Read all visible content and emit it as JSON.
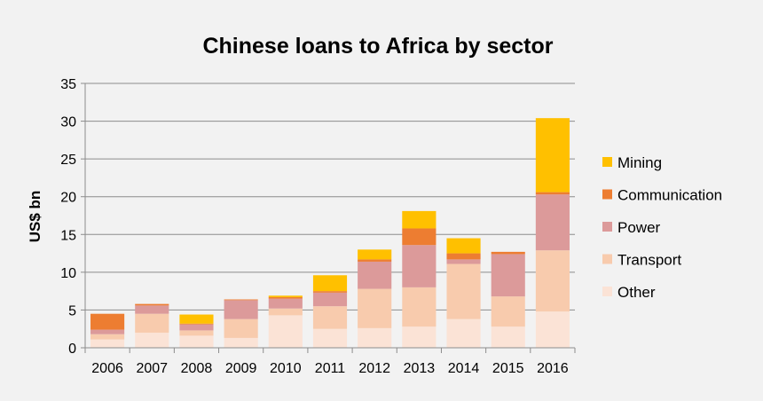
{
  "chart_data": {
    "type": "bar",
    "stacked": true,
    "title": "Chinese loans to Africa by sector",
    "xlabel": "",
    "ylabel": "US$ bn",
    "ylim": [
      0,
      35
    ],
    "yticks": [
      0,
      5,
      10,
      15,
      20,
      25,
      30,
      35
    ],
    "grid": true,
    "legend_position": "right",
    "categories": [
      "2006",
      "2007",
      "2008",
      "2009",
      "2010",
      "2011",
      "2012",
      "2013",
      "2014",
      "2015",
      "2016"
    ],
    "series": [
      {
        "name": "Other",
        "color": "#fbe3d6",
        "values": [
          1.1,
          2.0,
          1.6,
          1.3,
          4.3,
          2.5,
          2.6,
          2.8,
          3.8,
          2.8,
          4.8
        ]
      },
      {
        "name": "Transport",
        "color": "#f8cbad",
        "values": [
          0.7,
          2.5,
          0.7,
          2.5,
          0.9,
          3.0,
          5.2,
          5.2,
          7.3,
          4.0,
          8.1
        ]
      },
      {
        "name": "Power",
        "color": "#dc9a9a",
        "values": [
          0.6,
          1.1,
          0.8,
          2.5,
          1.3,
          1.8,
          3.6,
          5.6,
          0.6,
          5.6,
          7.4
        ]
      },
      {
        "name": "Communication",
        "color": "#ed7d31",
        "values": [
          2.1,
          0.2,
          0.1,
          0.1,
          0.2,
          0.2,
          0.3,
          2.2,
          0.8,
          0.3,
          0.3
        ]
      },
      {
        "name": "Mining",
        "color": "#ffc000",
        "values": [
          0.0,
          0.0,
          1.2,
          0.0,
          0.2,
          2.1,
          1.3,
          2.3,
          2.0,
          0.0,
          9.8
        ]
      }
    ]
  }
}
